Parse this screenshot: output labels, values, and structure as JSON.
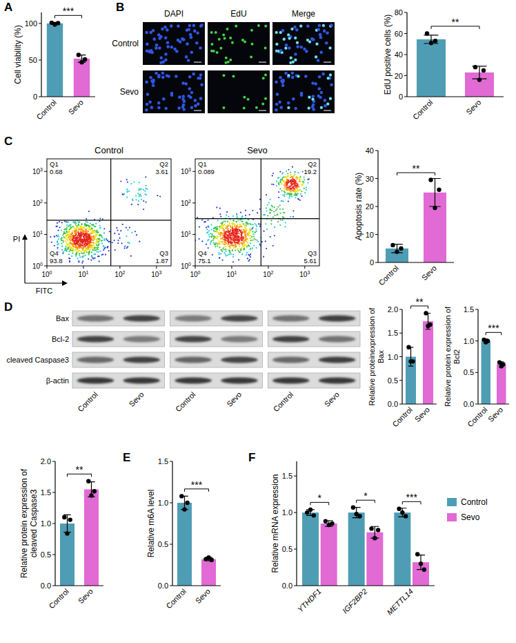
{
  "panel_letters": [
    "A",
    "B",
    "C",
    "D",
    "E",
    "F"
  ],
  "chart_data": [
    {
      "type": "bar",
      "categories": [
        "Control",
        "Sevo"
      ],
      "values": [
        100,
        52
      ],
      "errors": [
        1.5,
        5
      ],
      "points": [
        [
          101,
          98.5,
          100.5
        ],
        [
          57,
          47,
          51
        ]
      ],
      "colors": [
        "#4f9db5",
        "#e16ad4"
      ],
      "y_label": "Cell viability (%)",
      "ylim": [
        0,
        115
      ],
      "yticks": [
        0,
        50,
        100
      ],
      "annotation": "***"
    },
    {
      "type": "bar",
      "categories": [
        "Control",
        "Sevo"
      ],
      "values": [
        54.5,
        23
      ],
      "errors": [
        4,
        6
      ],
      "points": [
        [
          60,
          51,
          53
        ],
        [
          28,
          16,
          25
        ]
      ],
      "colors": [
        "#4f9db5",
        "#e16ad4"
      ],
      "y_label": "EdU positive cells (%)",
      "ylim": [
        0,
        80
      ],
      "yticks": [
        0,
        20,
        40,
        60,
        80
      ],
      "annotation": "**"
    },
    {
      "type": "bar",
      "categories": [
        "Control",
        "Sevo"
      ],
      "values": [
        5,
        25
      ],
      "errors": [
        1.5,
        5
      ],
      "points": [
        [
          6.2,
          3.8,
          5
        ],
        [
          29.5,
          19.5,
          26
        ]
      ],
      "colors": [
        "#4f9db5",
        "#e16ad4"
      ],
      "y_label": "Apoptosis rate (%)",
      "ylim": [
        0,
        40
      ],
      "yticks": [
        0,
        10,
        20,
        30,
        40
      ],
      "annotation": "**"
    },
    {
      "type": "bar",
      "categories": [
        "Control",
        "Sevo"
      ],
      "values": [
        1,
        1.75
      ],
      "errors": [
        0.2,
        0.17
      ],
      "points": [
        [
          1.2,
          0.9,
          0.9
        ],
        [
          1.92,
          1.65,
          1.68
        ]
      ],
      "colors": [
        "#4f9db5",
        "#e16ad4"
      ],
      "y_label": "Relative proteinexpression of Bax",
      "ylim": [
        0,
        2
      ],
      "yticks": [
        {
          "value": 0,
          "label": "0.0"
        },
        0.5,
        {
          "value": 1,
          "label": "1.0"
        },
        1.5,
        {
          "value": 2,
          "label": "2.0"
        }
      ],
      "annotation": "**"
    },
    {
      "type": "bar",
      "categories": [
        "Control",
        "Sevo"
      ],
      "values": [
        1,
        0.63
      ],
      "errors": [
        0.03,
        0.04
      ],
      "points": [
        [
          1.02,
          0.98,
          1
        ],
        [
          0.66,
          0.6,
          0.63
        ]
      ],
      "colors": [
        "#4f9db5",
        "#e16ad4"
      ],
      "y_label": "Relative protein expression of Bcl2",
      "ylim": [
        0,
        1.5
      ],
      "yticks": [
        {
          "value": 0,
          "label": "0.0"
        },
        0.5,
        {
          "value": 1,
          "label": "1.0"
        },
        1.5
      ],
      "annotation": "***"
    },
    {
      "type": "bar",
      "categories": [
        "Control",
        "Sevo"
      ],
      "values": [
        1,
        1.55
      ],
      "errors": [
        0.14,
        0.12
      ],
      "points": [
        [
          1.1,
          0.84,
          1.06
        ],
        [
          1.68,
          1.45,
          1.52
        ]
      ],
      "colors": [
        "#4f9db5",
        "#e16ad4"
      ],
      "y_label": "Relative protein expression of cleaved Caspase3",
      "ylim": [
        0,
        2
      ],
      "yticks": [
        {
          "value": 0,
          "label": "0.0"
        },
        0.5,
        {
          "value": 1,
          "label": "1.0"
        },
        1.5,
        {
          "value": 2,
          "label": "2.0"
        }
      ],
      "annotation": "**"
    },
    {
      "type": "bar",
      "categories": [
        "Control",
        "Sevo"
      ],
      "values": [
        1,
        0.32
      ],
      "errors": [
        0.08,
        0.02
      ],
      "points": [
        [
          1.08,
          0.92,
          1
        ],
        [
          0.32,
          0.34,
          0.31
        ]
      ],
      "colors": [
        "#4f9db5",
        "#e16ad4"
      ],
      "y_label": "Relative m6A level",
      "ylim": [
        0,
        1.5
      ],
      "yticks": [
        {
          "value": 0,
          "label": "0.0"
        },
        0.5,
        {
          "value": 1,
          "label": "1.0"
        },
        1.5
      ],
      "annotation": "***"
    },
    {
      "type": "bar",
      "categories": [
        "YTHDF1",
        "IGF2BP2",
        "METTL14"
      ],
      "series": [
        {
          "name": "Control",
          "color": "#4f9db5",
          "values": [
            1,
            1,
            1
          ],
          "errors": [
            0.04,
            0.07,
            0.06
          ],
          "points": [
            [
              1,
              1.04,
              0.96
            ],
            [
              1.07,
              0.98,
              0.95
            ],
            [
              1.05,
              1,
              0.95
            ]
          ]
        },
        {
          "name": "Sevo",
          "color": "#e16ad4",
          "values": [
            0.85,
            0.73,
            0.32
          ],
          "errors": [
            0.04,
            0.08,
            0.1
          ],
          "points": [
            [
              0.88,
              0.83,
              0.85
            ],
            [
              0.78,
              0.65,
              0.76
            ],
            [
              0.43,
              0.3,
              0.22
            ]
          ]
        }
      ],
      "y_label": "Relative mRNA expression",
      "ylim": [
        0,
        1.7
      ],
      "yticks": [
        {
          "value": 0,
          "label": "0.0"
        },
        0.5,
        {
          "value": 1,
          "label": "1.0"
        },
        1.5
      ],
      "annotations": [
        "*",
        "*",
        "***"
      ],
      "legend": "right"
    }
  ],
  "edu": {
    "columns": [
      "DAPI",
      "EdU",
      "Merge"
    ],
    "rows": [
      "Control",
      "Sevo"
    ]
  },
  "flow": {
    "x_label": "FITC",
    "y_label": "PI",
    "tick_base": 10,
    "ticks": [
      0,
      1,
      2,
      3
    ],
    "xlim": [
      0,
      3.4
    ],
    "ylim": [
      0,
      3.4
    ],
    "plots": [
      {
        "title": "Control",
        "gate_x": 1.75,
        "gate_y": 1.45,
        "quadrants": [
          {
            "name": "Q1",
            "value": 0.68
          },
          {
            "name": "Q2",
            "value": 3.61
          },
          {
            "name": "Q3",
            "value": 1.87
          },
          {
            "name": "Q4",
            "value": 93.8
          }
        ]
      },
      {
        "title": "Sevo",
        "gate_x": 1.8,
        "gate_y": 1.5,
        "quadrants": [
          {
            "name": "Q1",
            "value": 0.089
          },
          {
            "name": "Q2",
            "value": 19.2
          },
          {
            "name": "Q3",
            "value": 5.61
          },
          {
            "name": "Q4",
            "value": 75.1
          }
        ]
      }
    ]
  },
  "western_blot": {
    "rows": [
      "Bax",
      "Bcl-2",
      "cleaved Caspase3",
      "β-actin"
    ],
    "lanes": [
      "Control",
      "Sevo",
      "Control",
      "Sevo",
      "Control",
      "Sevo"
    ]
  }
}
